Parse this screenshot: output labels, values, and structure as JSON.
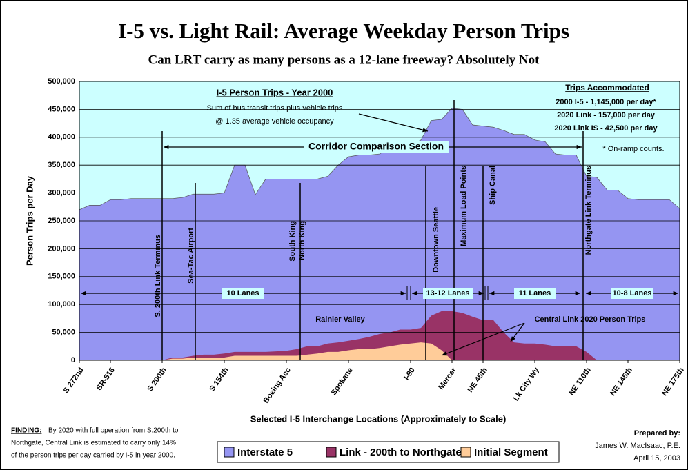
{
  "chart_data": {
    "type": "area",
    "title": "I-5 vs. Light Rail: Average Weekday Person Trips",
    "subtitle": "Can LRT carry as many persons as a 12-lane freeway?  Absolutely Not",
    "y_label": "Person Trips per Day",
    "x_label": "Selected I-5 Interchange Locations  (Approximately to Scale)",
    "categories": [
      "S 272nd",
      null,
      null,
      "SR-516",
      null,
      null,
      null,
      null,
      "S 200th",
      null,
      null,
      null,
      null,
      null,
      "S 154th",
      null,
      null,
      null,
      null,
      null,
      "Boeing Acc",
      null,
      null,
      null,
      null,
      null,
      "Spokane",
      null,
      null,
      null,
      null,
      null,
      "I-90",
      null,
      null,
      null,
      "Mercer",
      null,
      null,
      "NE 45th",
      null,
      null,
      null,
      null,
      "Lk City Wy",
      null,
      null,
      null,
      null,
      "NE 110th",
      null,
      null,
      null,
      "NE 145th",
      null,
      null,
      null,
      null,
      "NE 175th"
    ],
    "series": [
      {
        "name": "Interstate 5",
        "color": "#9595f2",
        "values": [
          270000,
          278000,
          278000,
          288000,
          288000,
          290000,
          290000,
          290000,
          290000,
          290000,
          292000,
          298000,
          298000,
          298000,
          300000,
          350000,
          350000,
          297000,
          325000,
          325000,
          325000,
          325000,
          325000,
          325000,
          330000,
          350000,
          365000,
          368000,
          368000,
          370000,
          380000,
          385000,
          385000,
          395000,
          430000,
          432000,
          452000,
          450000,
          422000,
          420000,
          418000,
          412000,
          405000,
          405000,
          395000,
          392000,
          370000,
          368000,
          368000,
          330000,
          328000,
          305000,
          305000,
          290000,
          288000,
          288000,
          288000,
          288000,
          272000
        ]
      },
      {
        "name": "Link - 200th to Northgate",
        "color": "#993366",
        "values": [
          0,
          0,
          0,
          0,
          0,
          0,
          0,
          0,
          0,
          5000,
          5000,
          8000,
          10000,
          10000,
          12000,
          15000,
          15000,
          15000,
          15000,
          16000,
          17000,
          20000,
          25000,
          25000,
          30000,
          32000,
          35000,
          38000,
          42000,
          47000,
          50000,
          55000,
          55000,
          58000,
          80000,
          88000,
          88000,
          85000,
          78000,
          72000,
          72000,
          50000,
          32000,
          30000,
          30000,
          28000,
          25000,
          25000,
          25000,
          15000,
          0,
          0,
          0,
          0,
          0,
          0,
          0,
          0,
          0
        ]
      },
      {
        "name": "Initial Segment",
        "color": "#ffcc99",
        "values": [
          0,
          0,
          0,
          0,
          0,
          0,
          0,
          0,
          0,
          3000,
          3000,
          5000,
          5000,
          5000,
          5000,
          8000,
          8000,
          8000,
          8000,
          8000,
          8000,
          8000,
          10000,
          12000,
          15000,
          15000,
          18000,
          20000,
          20000,
          22000,
          25000,
          28000,
          30000,
          32000,
          30000,
          18000,
          0,
          0,
          0,
          0,
          0,
          0,
          0,
          0,
          0,
          0,
          0,
          0,
          0,
          0,
          0,
          0,
          0,
          0,
          0,
          0,
          0,
          0,
          0
        ]
      }
    ],
    "ylim": [
      0,
      500000
    ],
    "yticks": [
      0,
      {
        "value": 50000,
        "label": "50,000"
      },
      {
        "value": 100000,
        "label": "100,000"
      },
      {
        "value": 150000,
        "label": "150,000"
      },
      {
        "value": 200000,
        "label": "200,000"
      },
      {
        "value": 250000,
        "label": "250,000"
      },
      {
        "value": 300000,
        "label": "300,000"
      },
      {
        "value": 350000,
        "label": "350,000"
      },
      {
        "value": 400000,
        "label": "400,000"
      },
      {
        "value": 450000,
        "label": "450,000"
      },
      {
        "value": {
          "value": 500000
        },
        "label": "500,000"
      }
    ],
    "grid": true,
    "plot_background": "#ccffff",
    "annotations": [
      "I-5 Person Trips - Year 2000",
      "Sum of bus transit trips plus vehicle trips",
      "@ 1.35 average vehicle occupancy",
      "Corridor Comparison Section",
      "Trips Accommodated",
      "2000 I-5 -  1,145,000 per day*",
      "2020 Link -  157,000 per day",
      "2020 Link IS - 42,500 per day",
      "* On-ramp counts.",
      "S. 200th Link Terminus",
      "Sea-Tac Airport",
      "South King",
      "North King",
      "Downtown Seattle",
      "Maximum Load Points",
      "Ship Canal",
      "Northgate Link Terminus",
      "10 Lanes",
      "13-12 Lanes",
      "11 Lanes",
      "10-8 Lanes",
      "Rainier Valley",
      "Central Link 2020 Person Trips"
    ],
    "finding": {
      "label": "FINDING:",
      "lines": [
        "By 2020 with full operation from S.200th to",
        "Northgate, Central Link is estimated to carry only 14%",
        "of the person trips per day carried by I-5 in year 2000."
      ]
    },
    "credit": [
      "Prepared by:",
      "James W. MacIsaac, P.E.",
      "April 15, 2003"
    ]
  }
}
